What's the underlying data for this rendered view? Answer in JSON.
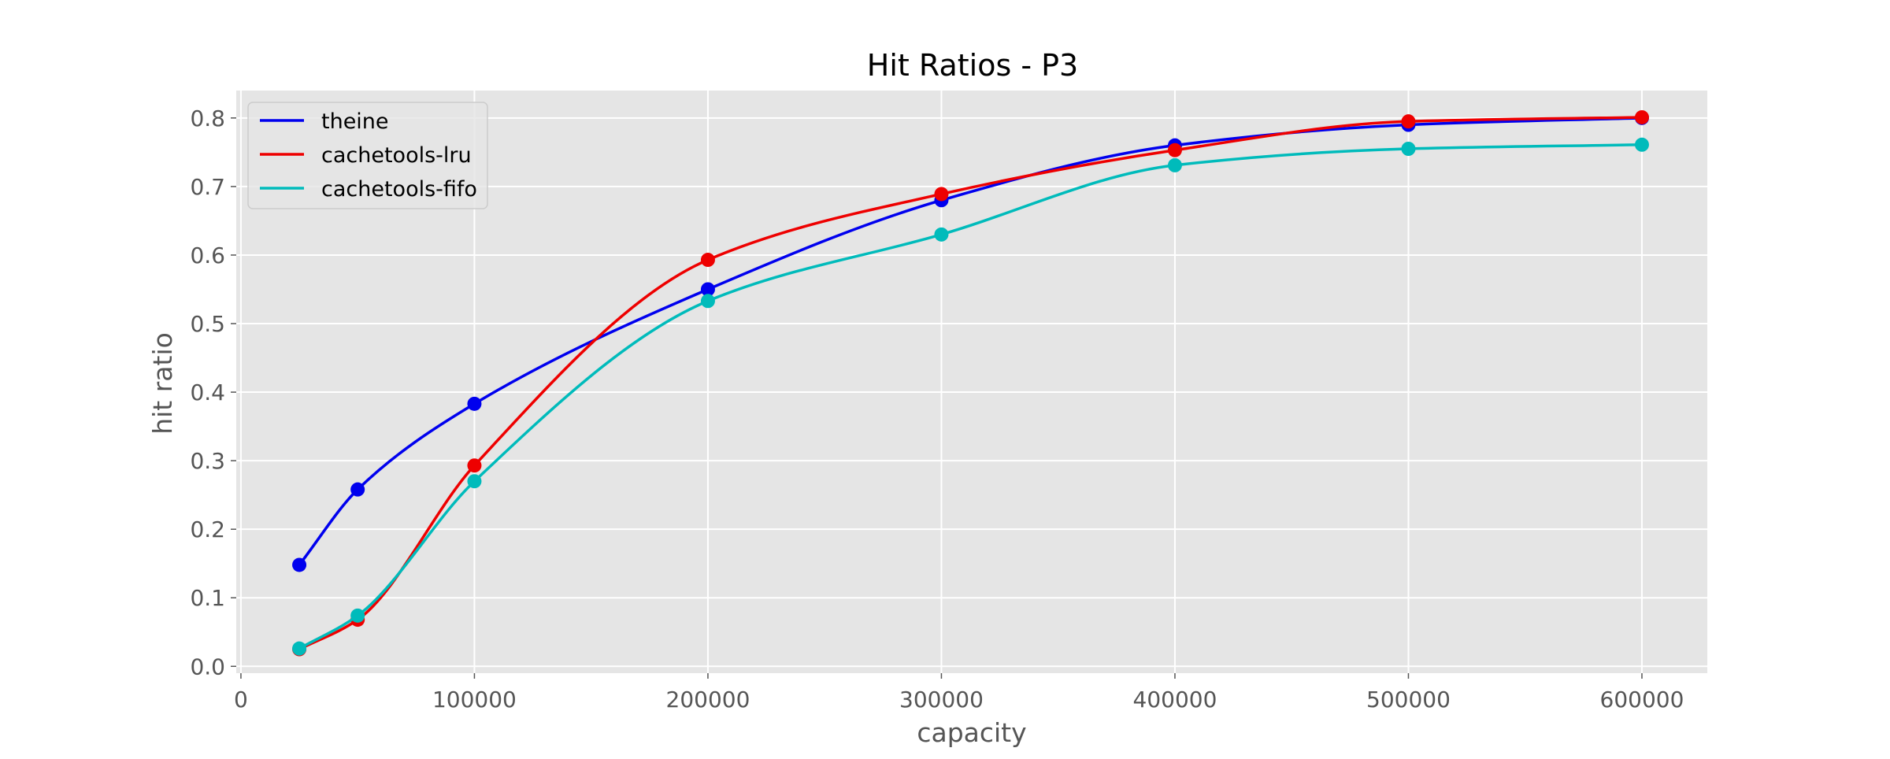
{
  "chart_data": {
    "type": "line",
    "title": "Hit Ratios - P3",
    "xlabel": "capacity",
    "ylabel": "hit ratio",
    "xlim": [
      -2000,
      628000
    ],
    "ylim": [
      -0.01,
      0.84
    ],
    "xticks": [
      0,
      100000,
      200000,
      300000,
      400000,
      500000,
      600000
    ],
    "xtick_labels": [
      "0",
      "100000",
      "200000",
      "300000",
      "400000",
      "500000",
      "600000"
    ],
    "yticks": [
      0.0,
      0.1,
      0.2,
      0.3,
      0.4,
      0.5,
      0.6,
      0.7,
      0.8
    ],
    "ytick_labels": [
      "0.0",
      "0.1",
      "0.2",
      "0.3",
      "0.4",
      "0.5",
      "0.6",
      "0.7",
      "0.8"
    ],
    "grid": true,
    "legend_position": "top-left",
    "x": [
      25000,
      50000,
      100000,
      200000,
      300000,
      400000,
      500000,
      600000
    ],
    "series": [
      {
        "name": "theine",
        "color": "#0000ee",
        "values": [
          0.148,
          0.258,
          0.383,
          0.55,
          0.68,
          0.76,
          0.79,
          0.8
        ]
      },
      {
        "name": "cachetools-lru",
        "color": "#ee0000",
        "values": [
          0.025,
          0.068,
          0.293,
          0.593,
          0.689,
          0.753,
          0.795,
          0.801
        ]
      },
      {
        "name": "cachetools-fifo",
        "color": "#00bbbb",
        "values": [
          0.026,
          0.074,
          0.27,
          0.533,
          0.63,
          0.731,
          0.755,
          0.761
        ]
      }
    ]
  }
}
